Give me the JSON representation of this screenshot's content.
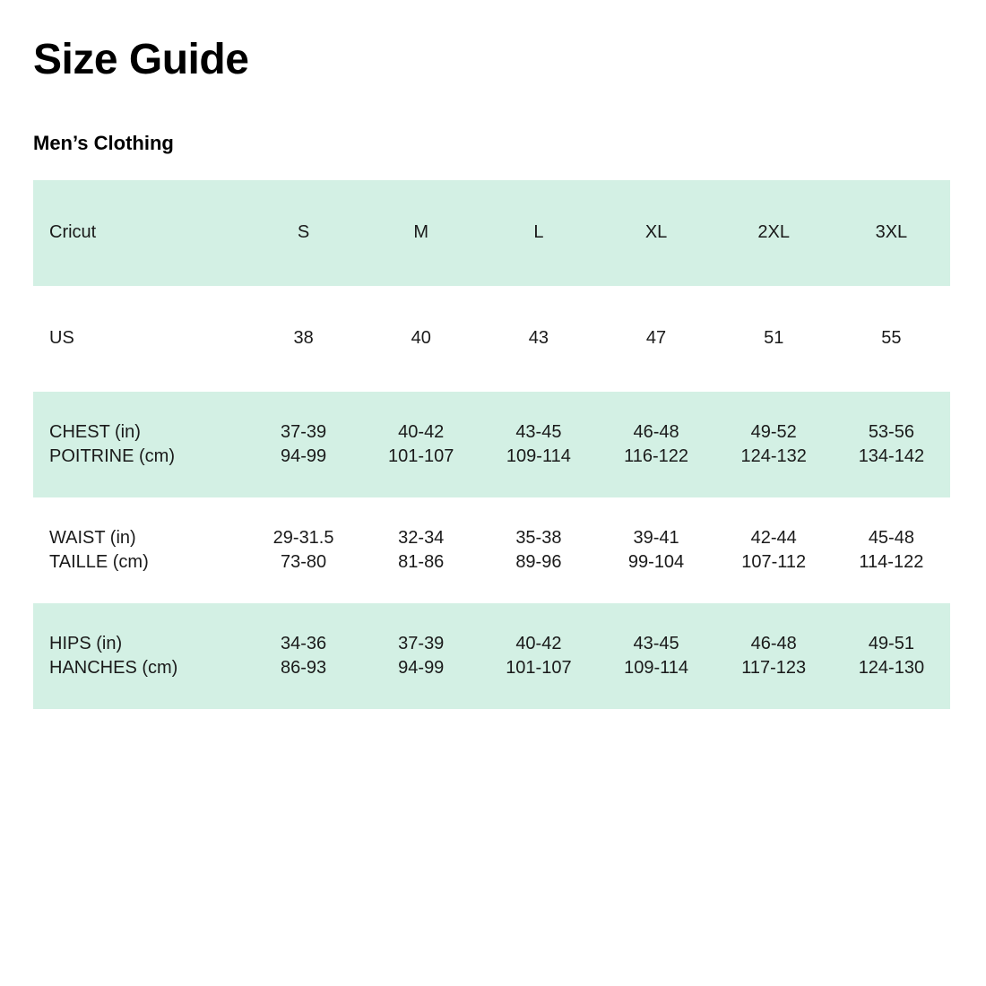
{
  "page": {
    "title": "Size Guide",
    "subtitle": "Men’s Clothing"
  },
  "colors": {
    "row_green": "#d3f0e4",
    "text": "#1a1a1a",
    "background": "#ffffff"
  },
  "table": {
    "rows": [
      {
        "kind": "header",
        "cells": [
          [
            "Cricut"
          ],
          [
            "S"
          ],
          [
            "M"
          ],
          [
            "L"
          ],
          [
            "XL"
          ],
          [
            "2XL"
          ],
          [
            "3XL"
          ]
        ]
      },
      {
        "kind": "us-sizes",
        "cells": [
          [
            "US"
          ],
          [
            "38"
          ],
          [
            "40"
          ],
          [
            "43"
          ],
          [
            "47"
          ],
          [
            "51"
          ],
          [
            "55"
          ]
        ]
      },
      {
        "kind": "chest",
        "cells": [
          [
            "CHEST (in)",
            "POITRINE (cm)"
          ],
          [
            "37-39",
            "94-99"
          ],
          [
            "40-42",
            "101-107"
          ],
          [
            "43-45",
            "109-114"
          ],
          [
            "46-48",
            "116-122"
          ],
          [
            "49-52",
            "124-132"
          ],
          [
            "53-56",
            "134-142"
          ]
        ]
      },
      {
        "kind": "waist",
        "cells": [
          [
            "WAIST (in)",
            "TAILLE (cm)"
          ],
          [
            "29-31.5",
            "73-80"
          ],
          [
            "32-34",
            "81-86"
          ],
          [
            "35-38",
            "89-96"
          ],
          [
            "39-41",
            "99-104"
          ],
          [
            "42-44",
            "107-112"
          ],
          [
            "45-48",
            "114-122"
          ]
        ]
      },
      {
        "kind": "hips",
        "cells": [
          [
            "HIPS (in)",
            "HANCHES (cm)"
          ],
          [
            "34-36",
            "86-93"
          ],
          [
            "37-39",
            "94-99"
          ],
          [
            "40-42",
            "101-107"
          ],
          [
            "43-45",
            "109-114"
          ],
          [
            "46-48",
            "117-123"
          ],
          [
            "49-51",
            "124-130"
          ]
        ]
      }
    ]
  }
}
